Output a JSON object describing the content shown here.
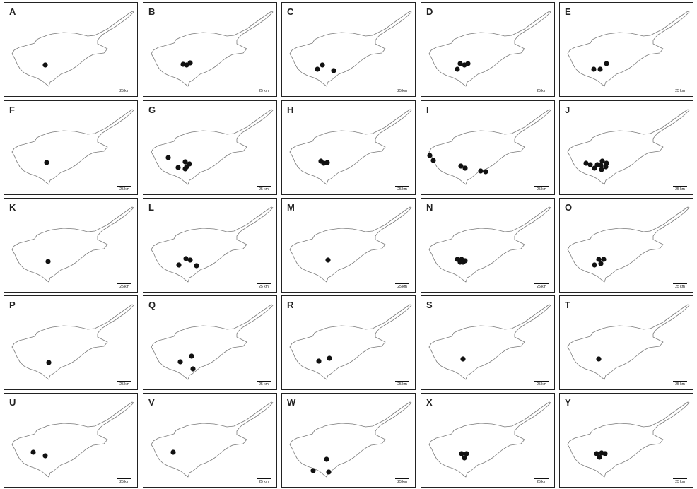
{
  "figure": {
    "scale_label": "25 km",
    "outline_color": "#7a7a7a",
    "marker_color": "#111111",
    "panels": [
      {
        "label": "A",
        "sites": [
          [
            58,
            88
          ]
        ]
      },
      {
        "label": "B",
        "sites": [
          [
            56,
            87
          ],
          [
            61,
            88
          ],
          [
            66,
            85
          ]
        ]
      },
      {
        "label": "C",
        "sites": [
          [
            57,
            88
          ],
          [
            50,
            94
          ],
          [
            73,
            96
          ]
        ]
      },
      {
        "label": "D",
        "sites": [
          [
            55,
            86
          ],
          [
            61,
            88
          ],
          [
            66,
            86
          ],
          [
            51,
            94
          ]
        ]
      },
      {
        "label": "E",
        "sites": [
          [
            66,
            86
          ],
          [
            48,
            94
          ],
          [
            57,
            94
          ]
        ]
      },
      {
        "label": "F",
        "sites": [
          [
            60,
            87
          ]
        ]
      },
      {
        "label": "G",
        "sites": [
          [
            35,
            80
          ],
          [
            59,
            86
          ],
          [
            65,
            89
          ],
          [
            49,
            94
          ],
          [
            61,
            93
          ],
          [
            59,
            96
          ]
        ]
      },
      {
        "label": "H",
        "sites": [
          [
            55,
            85
          ],
          [
            59,
            88
          ],
          [
            64,
            87
          ]
        ]
      },
      {
        "label": "I",
        "sites": [
          [
            12,
            77
          ],
          [
            17,
            84
          ],
          [
            56,
            92
          ],
          [
            62,
            95
          ],
          [
            84,
            99
          ],
          [
            91,
            100
          ]
        ]
      },
      {
        "label": "J",
        "sites": [
          [
            60,
            85
          ],
          [
            37,
            88
          ],
          [
            43,
            90
          ],
          [
            53,
            90
          ],
          [
            66,
            88
          ],
          [
            58,
            91
          ],
          [
            65,
            93
          ],
          [
            49,
            95
          ],
          [
            59,
            97
          ]
        ]
      },
      {
        "label": "K",
        "sites": [
          [
            62,
            89
          ]
        ]
      },
      {
        "label": "L",
        "sites": [
          [
            60,
            85
          ],
          [
            66,
            87
          ],
          [
            50,
            94
          ],
          [
            75,
            95
          ]
        ]
      },
      {
        "label": "M",
        "sites": [
          [
            65,
            87
          ]
        ]
      },
      {
        "label": "N",
        "sites": [
          [
            51,
            86
          ],
          [
            57,
            86
          ],
          [
            62,
            88
          ],
          [
            55,
            90
          ],
          [
            59,
            90
          ]
        ]
      },
      {
        "label": "O",
        "sites": [
          [
            55,
            86
          ],
          [
            62,
            86
          ],
          [
            49,
            94
          ],
          [
            58,
            92
          ]
        ]
      },
      {
        "label": "P",
        "sites": [
          [
            63,
            94
          ]
        ]
      },
      {
        "label": "Q",
        "sites": [
          [
            68,
            85
          ],
          [
            52,
            93
          ],
          [
            70,
            103
          ]
        ]
      },
      {
        "label": "R",
        "sites": [
          [
            67,
            88
          ],
          [
            52,
            92
          ]
        ]
      },
      {
        "label": "S",
        "sites": [
          [
            59,
            89
          ]
        ]
      },
      {
        "label": "T",
        "sites": [
          [
            55,
            89
          ]
        ]
      },
      {
        "label": "U",
        "sites": [
          [
            41,
            83
          ],
          [
            58,
            88
          ]
        ]
      },
      {
        "label": "V",
        "sites": [
          [
            42,
            83
          ]
        ]
      },
      {
        "label": "W",
        "sites": [
          [
            63,
            93
          ],
          [
            44,
            109
          ],
          [
            66,
            111
          ]
        ]
      },
      {
        "label": "X",
        "sites": [
          [
            57,
            85
          ],
          [
            64,
            85
          ],
          [
            61,
            91
          ]
        ]
      },
      {
        "label": "Y",
        "sites": [
          [
            52,
            85
          ],
          [
            59,
            84
          ],
          [
            64,
            85
          ],
          [
            56,
            90
          ]
        ]
      }
    ]
  }
}
